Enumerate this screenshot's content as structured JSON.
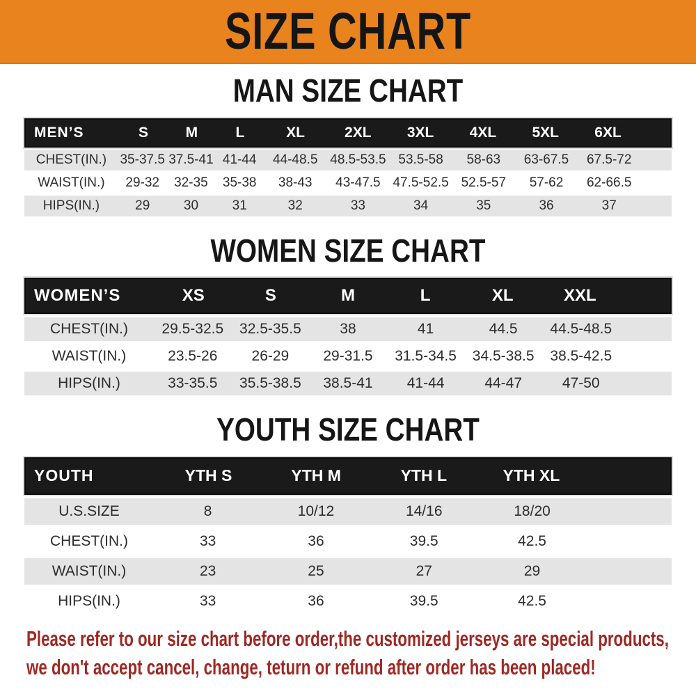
{
  "theme": {
    "banner_bg": "#E8831E",
    "bar_bg": "#1A1A1A",
    "stripe": "#E4E4E4",
    "disclaimer_red": "#9E2823"
  },
  "banner": {
    "title": "SIZE CHART"
  },
  "sections": [
    {
      "heading": "MAN SIZE CHART",
      "table": {
        "label": "MEN’S",
        "columns": [
          "S",
          "M",
          "L",
          "XL",
          "2XL",
          "3XL",
          "4XL",
          "5XL",
          "6XL"
        ],
        "rows": [
          {
            "label": "CHEST(IN.)",
            "values": [
              "35-37.5",
              "37.5-41",
              "41-44",
              "44-48.5",
              "48.5-53.5",
              "53.5-58",
              "58-63",
              "63-67.5",
              "67.5-72"
            ]
          },
          {
            "label": "WAIST(IN.)",
            "values": [
              "29-32",
              "32-35",
              "35-38",
              "38-43",
              "43-47.5",
              "47.5-52.5",
              "52.5-57",
              "57-62",
              "62-66.5"
            ]
          },
          {
            "label": "HIPS(IN.)",
            "values": [
              "29",
              "30",
              "31",
              "32",
              "33",
              "34",
              "35",
              "36",
              "37"
            ]
          }
        ]
      }
    },
    {
      "heading": "WOMEN SIZE CHART",
      "table": {
        "label": "WOMEN’S",
        "columns": [
          "XS",
          "S",
          "M",
          "L",
          "XL",
          "XXL"
        ],
        "rows": [
          {
            "label": "CHEST(IN.)",
            "values": [
              "29.5-32.5",
              "32.5-35.5",
              "38",
              "41",
              "44.5",
              "44.5-48.5"
            ]
          },
          {
            "label": "WAIST(IN.)",
            "values": [
              "23.5-26",
              "26-29",
              "29-31.5",
              "31.5-34.5",
              "34.5-38.5",
              "38.5-42.5"
            ]
          },
          {
            "label": "HIPS(IN.)",
            "values": [
              "33-35.5",
              "35.5-38.5",
              "38.5-41",
              "41-44",
              "44-47",
              "47-50"
            ]
          }
        ]
      }
    },
    {
      "heading": "YOUTH SIZE CHART",
      "table": {
        "label": "YOUTH",
        "columns": [
          "YTH S",
          "YTH M",
          "YTH L",
          "YTH XL"
        ],
        "rows": [
          {
            "label": "U.S.SIZE",
            "values": [
              "8",
              "10/12",
              "14/16",
              "18/20"
            ]
          },
          {
            "label": "CHEST(IN.)",
            "values": [
              "33",
              "36",
              "39.5",
              "42.5"
            ]
          },
          {
            "label": "WAIST(IN.)",
            "values": [
              "23",
              "25",
              "27",
              "29"
            ]
          },
          {
            "label": "HIPS(IN.)",
            "values": [
              "33",
              "36",
              "39.5",
              "42.5"
            ]
          }
        ]
      }
    }
  ],
  "disclaimer": {
    "line1": "Please refer to our size chart before order,the customized jerseys are special products,",
    "line2": "we don't accept cancel, change, teturn or refund after order has been placed!"
  }
}
